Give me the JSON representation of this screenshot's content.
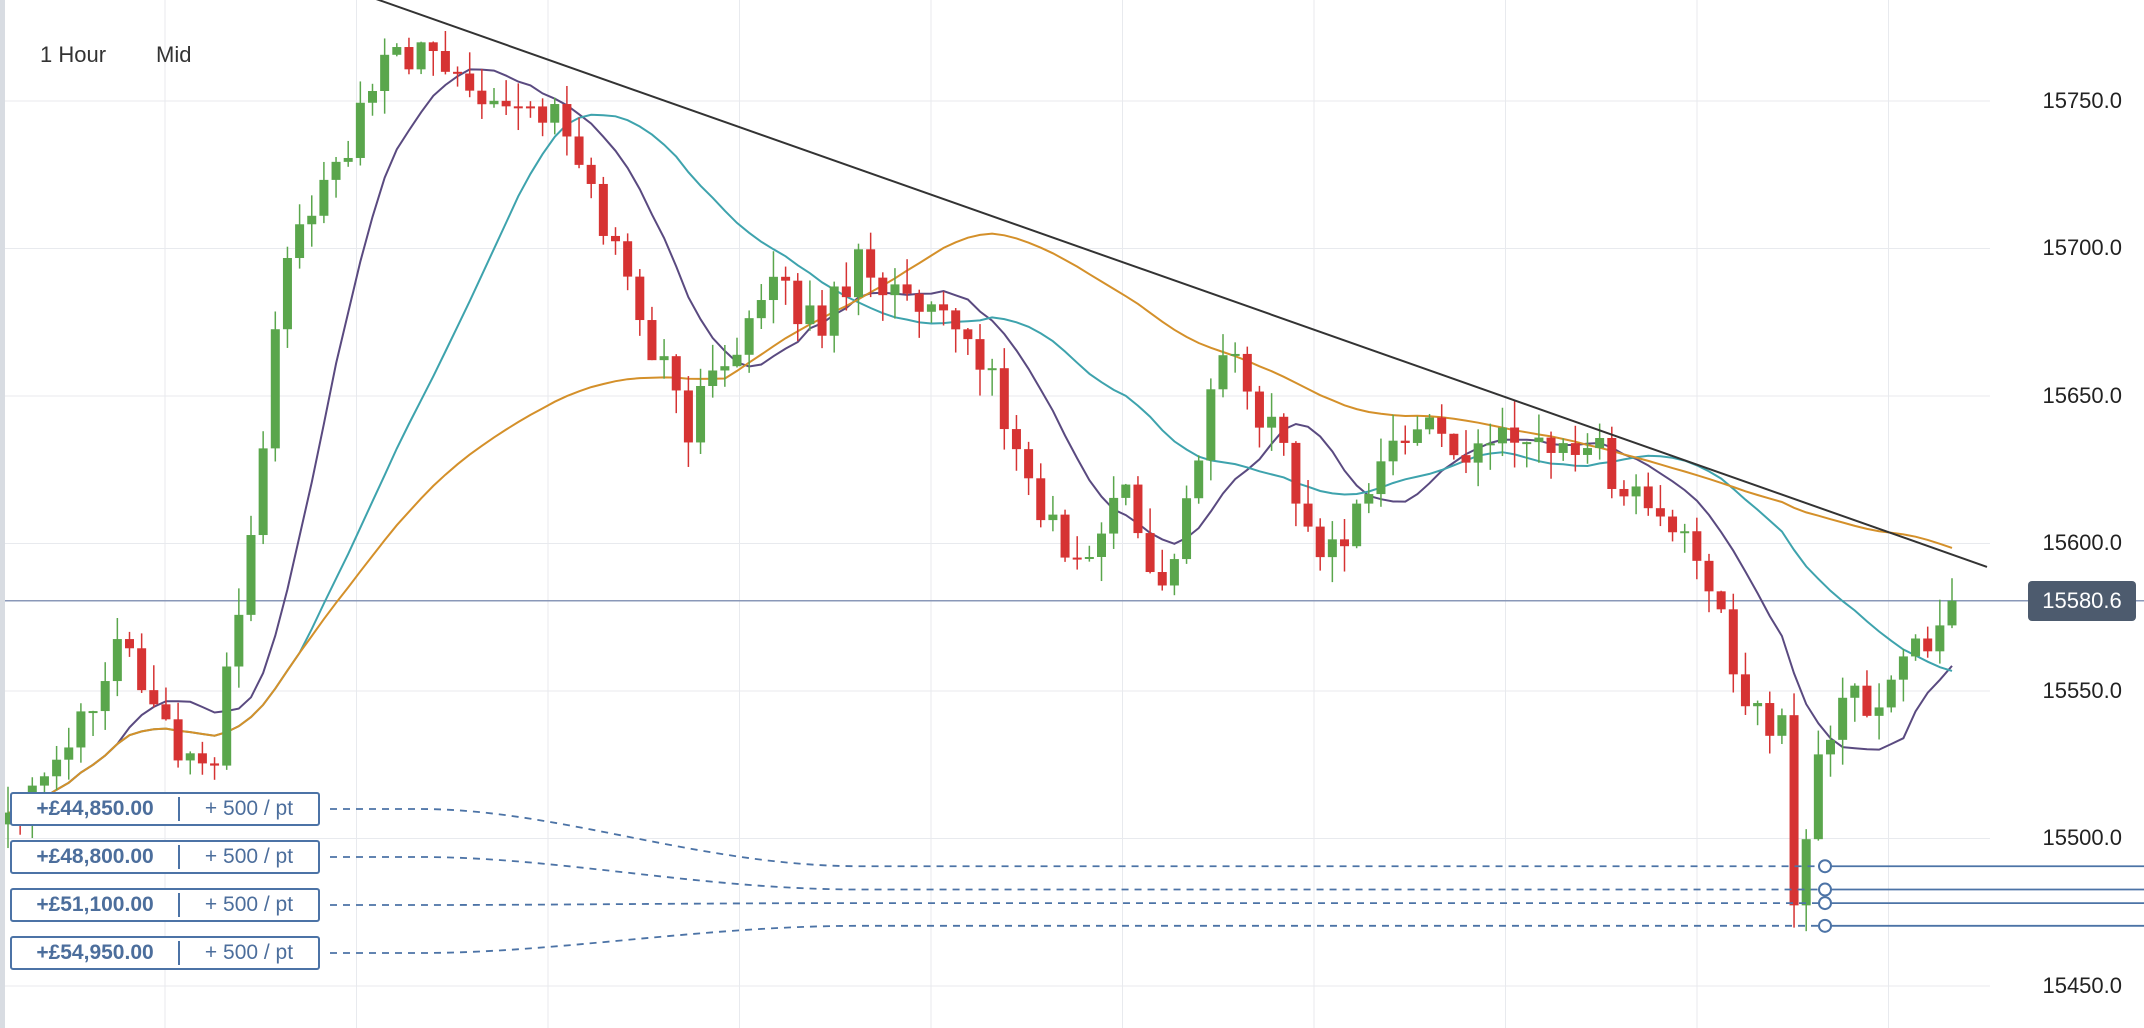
{
  "toolbar": {
    "timeframe": "1 Hour",
    "price_type": "Mid"
  },
  "price_axis": {
    "ticks": [
      "15750.0",
      "15700.0",
      "15650.0",
      "15600.0",
      "15550.0",
      "15500.0",
      "15450.0"
    ],
    "current_price": "15580.6"
  },
  "colors": {
    "up": "#5aa64c",
    "down": "#d63333",
    "ma_fast": "#5a4a80",
    "ma_mid": "#3ea3ad",
    "ma_slow": "#d4902a",
    "trendline": "#333333",
    "order_line": "#4c73a6",
    "grid": "#e8eaee",
    "price_line": "#8a98b8"
  },
  "orders": [
    {
      "pnl": "+£44,850.00",
      "rate": "+ 500 / pt",
      "level": 15490.6
    },
    {
      "pnl": "+£48,800.00",
      "rate": "+ 500 / pt",
      "level": 15482.7
    },
    {
      "pnl": "+£51,100.00",
      "rate": "+ 500 / pt",
      "level": 15478.1
    },
    {
      "pnl": "+£54,950.00",
      "rate": "+ 500 / pt",
      "level": 15470.4
    }
  ],
  "chart_data": {
    "type": "candlestick",
    "instrument_timeframe": "1 Hour",
    "ylim": [
      15445,
      15775
    ],
    "current_price": 15580.6,
    "grid": true,
    "trendline": {
      "from_index": 30,
      "from_price": 15785,
      "to_index": 160,
      "to_price": 15588
    },
    "price_path": [
      [
        0,
        15510
      ],
      [
        6,
        15540
      ],
      [
        9,
        15570
      ],
      [
        14,
        15530
      ],
      [
        17,
        15525
      ],
      [
        20,
        15605
      ],
      [
        23,
        15700
      ],
      [
        28,
        15735
      ],
      [
        32,
        15768
      ],
      [
        39,
        15755
      ],
      [
        45,
        15745
      ],
      [
        49,
        15710
      ],
      [
        53,
        15668
      ],
      [
        56,
        15640
      ],
      [
        59,
        15665
      ],
      [
        63,
        15685
      ],
      [
        67,
        15675
      ],
      [
        70,
        15698
      ],
      [
        74,
        15680
      ],
      [
        78,
        15670
      ],
      [
        80,
        15665
      ],
      [
        84,
        15620
      ],
      [
        88,
        15590
      ],
      [
        92,
        15620
      ],
      [
        95,
        15583
      ],
      [
        98,
        15630
      ],
      [
        100,
        15665
      ],
      [
        103,
        15645
      ],
      [
        105,
        15633
      ],
      [
        108,
        15595
      ],
      [
        111,
        15610
      ],
      [
        113,
        15630
      ],
      [
        117,
        15640
      ],
      [
        121,
        15628
      ],
      [
        124,
        15640
      ],
      [
        127,
        15632
      ],
      [
        130,
        15635
      ],
      [
        133,
        15620
      ],
      [
        137,
        15605
      ],
      [
        140,
        15585
      ],
      [
        143,
        15550
      ],
      [
        146,
        15535
      ],
      [
        147,
        15476
      ],
      [
        149,
        15530
      ],
      [
        152,
        15548
      ],
      [
        154,
        15545
      ],
      [
        157,
        15570
      ],
      [
        159,
        15568
      ],
      [
        160,
        15580.6
      ]
    ]
  }
}
